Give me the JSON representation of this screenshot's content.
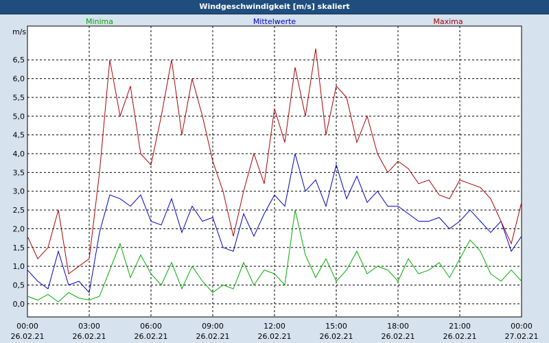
{
  "window": {
    "title": "Windgeschwindigkeit [m/s] skaliert"
  },
  "colors": {
    "minima": "#00aa00",
    "mittel": "#0000cc",
    "maxima": "#aa0000",
    "title_bg": "#1f4e7e",
    "plot_bg": "#ffffff",
    "frame_bg": "#d6e2ee"
  },
  "chart_data": {
    "type": "line",
    "title": "Windgeschwindigkeit [m/s] skaliert",
    "ylabel": "m/s",
    "xlabel": "",
    "ylim": [
      -0.35,
      7.4
    ],
    "xlim": [
      0,
      24
    ],
    "grid": true,
    "legend_placement": "top",
    "y_ticks": [
      "0,0",
      "0,5",
      "1,0",
      "1,5",
      "2,0",
      "2,5",
      "3,0",
      "3,5",
      "4,0",
      "4,5",
      "5,0",
      "5,5",
      "6,0",
      "6,5"
    ],
    "x_ticks": [
      {
        "time": "00:00",
        "date": "26.02.21"
      },
      {
        "time": "03:00",
        "date": "26.02.21"
      },
      {
        "time": "06:00",
        "date": "26.02.21"
      },
      {
        "time": "09:00",
        "date": "26.02.21"
      },
      {
        "time": "12:00",
        "date": "26.02.21"
      },
      {
        "time": "15:00",
        "date": "26.02.21"
      },
      {
        "time": "18:00",
        "date": "26.02.21"
      },
      {
        "time": "21:00",
        "date": "26.02.21"
      },
      {
        "time": "00:00",
        "date": "27.02.21"
      }
    ],
    "series": [
      {
        "name": "Minima",
        "color": "#00aa00",
        "x": [
          0,
          0.5,
          1,
          1.5,
          2,
          2.5,
          3,
          3.5,
          4,
          4.5,
          5,
          5.5,
          6,
          6.5,
          7,
          7.5,
          8,
          8.5,
          9,
          9.5,
          10,
          10.5,
          11,
          11.5,
          12,
          12.5,
          13,
          13.5,
          14,
          14.5,
          15,
          15.5,
          16,
          16.5,
          17,
          17.5,
          18,
          18.5,
          19,
          19.5,
          20,
          20.5,
          21,
          21.5,
          22,
          22.5,
          23,
          23.5,
          24
        ],
        "values": [
          0.2,
          0.1,
          0.25,
          0.05,
          0.3,
          0.15,
          0.1,
          0.2,
          0.9,
          1.6,
          0.7,
          1.3,
          0.8,
          0.5,
          1.1,
          0.4,
          1.0,
          0.6,
          0.3,
          0.5,
          0.4,
          1.1,
          0.5,
          0.9,
          0.8,
          0.5,
          2.5,
          1.3,
          0.7,
          1.2,
          0.6,
          0.9,
          1.4,
          0.8,
          1.0,
          0.9,
          0.6,
          1.2,
          0.8,
          0.9,
          1.1,
          0.7,
          1.2,
          1.7,
          1.4,
          0.8,
          0.6,
          0.9,
          0.6
        ]
      },
      {
        "name": "Mittelwerte",
        "color": "#0000cc",
        "x": [
          0,
          0.5,
          1,
          1.5,
          2,
          2.5,
          3,
          3.5,
          4,
          4.5,
          5,
          5.5,
          6,
          6.5,
          7,
          7.5,
          8,
          8.5,
          9,
          9.5,
          10,
          10.5,
          11,
          11.5,
          12,
          12.5,
          13,
          13.5,
          14,
          14.5,
          15,
          15.5,
          16,
          16.5,
          17,
          17.5,
          18,
          18.5,
          19,
          19.5,
          20,
          20.5,
          21,
          21.5,
          22,
          22.5,
          23,
          23.5,
          24
        ],
        "values": [
          0.9,
          0.6,
          0.4,
          1.4,
          0.5,
          0.6,
          0.3,
          1.9,
          2.9,
          2.8,
          2.6,
          2.9,
          2.2,
          2.1,
          2.8,
          1.9,
          2.6,
          2.2,
          2.3,
          1.5,
          1.4,
          2.4,
          1.8,
          2.4,
          2.9,
          2.6,
          4.0,
          3.0,
          3.3,
          2.6,
          3.7,
          2.8,
          3.4,
          2.7,
          3.0,
          2.6,
          2.6,
          2.4,
          2.2,
          2.2,
          2.3,
          2.0,
          2.2,
          2.5,
          2.2,
          1.9,
          2.2,
          1.4,
          1.8
        ]
      },
      {
        "name": "Maxima",
        "color": "#aa0000",
        "x": [
          0,
          0.5,
          1,
          1.5,
          2,
          2.5,
          3,
          3.5,
          4,
          4.5,
          5,
          5.5,
          6,
          6.5,
          7,
          7.5,
          8,
          8.5,
          9,
          9.5,
          10,
          10.5,
          11,
          11.5,
          12,
          12.5,
          13,
          13.5,
          14,
          14.5,
          15,
          15.5,
          16,
          16.5,
          17,
          17.5,
          18,
          18.5,
          19,
          19.5,
          20,
          20.5,
          21,
          21.5,
          22,
          22.5,
          23,
          23.5,
          24
        ],
        "values": [
          1.8,
          1.2,
          1.5,
          2.5,
          0.8,
          1.0,
          1.2,
          3.5,
          6.5,
          5.0,
          5.8,
          4.0,
          3.7,
          5.0,
          6.5,
          4.5,
          6.0,
          5.0,
          3.8,
          3.0,
          1.8,
          3.0,
          4.0,
          3.2,
          5.2,
          4.3,
          6.3,
          5.0,
          6.8,
          4.5,
          5.8,
          5.5,
          4.3,
          5.0,
          4.0,
          3.5,
          3.8,
          3.6,
          3.2,
          3.3,
          2.9,
          2.8,
          3.3,
          3.2,
          3.1,
          2.8,
          2.2,
          1.6,
          2.7
        ]
      }
    ]
  }
}
